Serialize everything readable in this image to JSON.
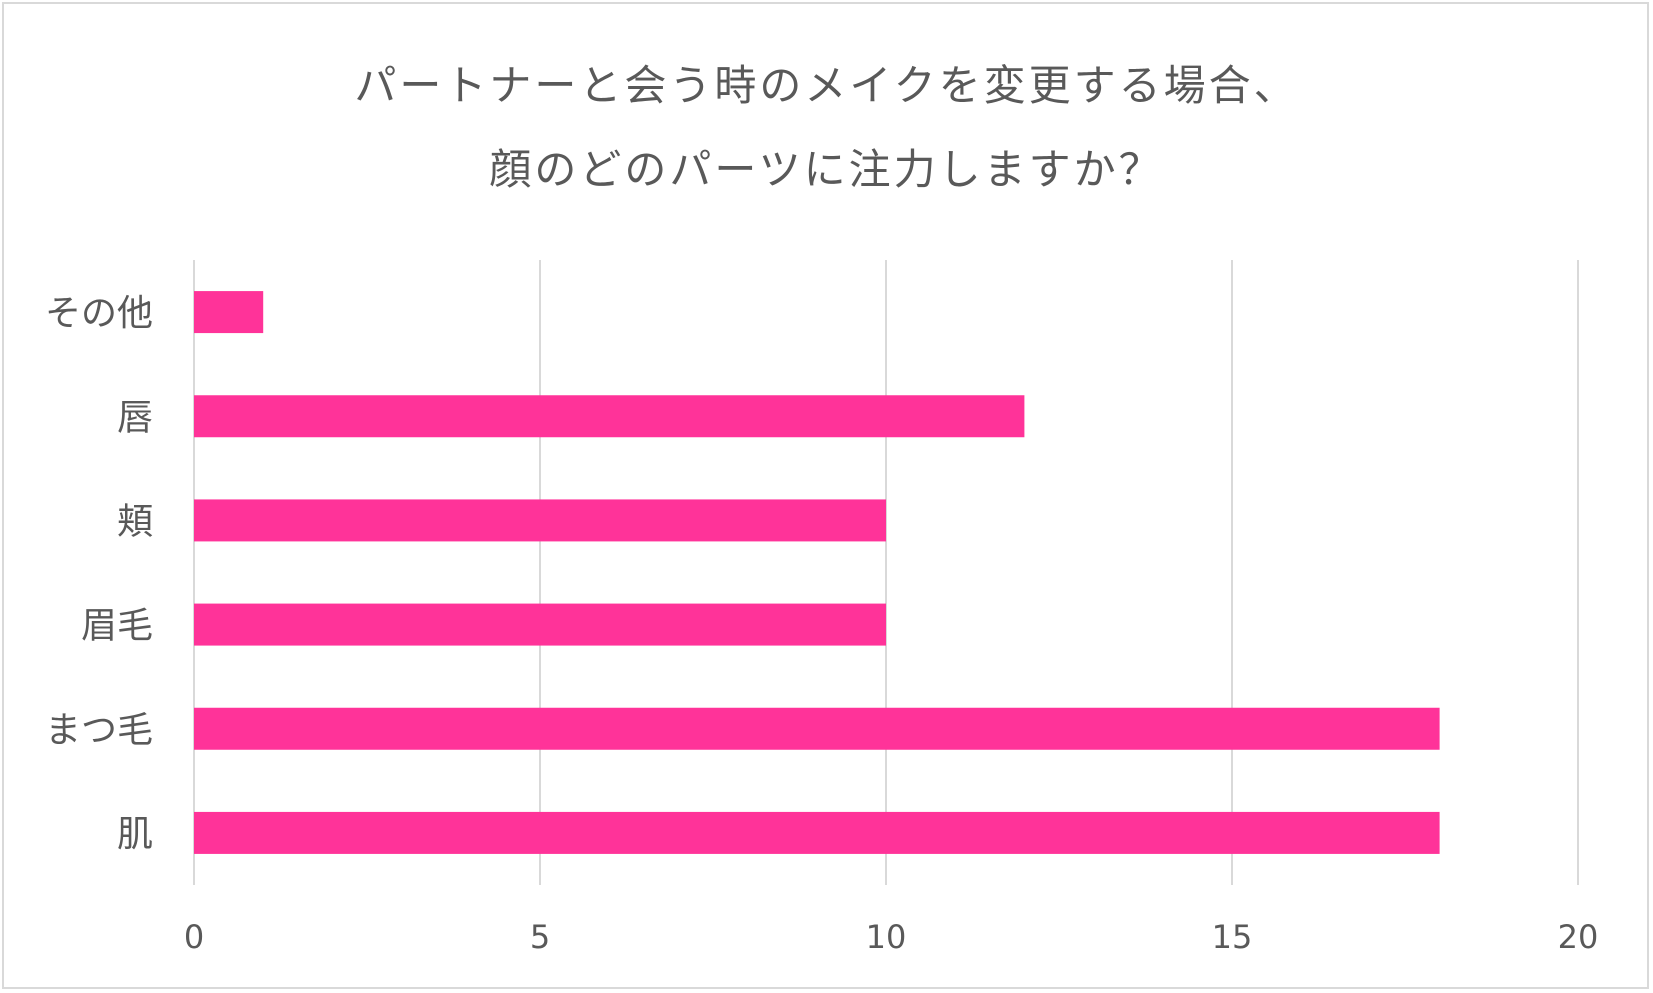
{
  "chart_data": {
    "type": "bar",
    "orientation": "horizontal",
    "title_lines": [
      "パートナーと会う時のメイクを変更する場合、",
      "顔のどのパーツに注力しますか？"
    ],
    "categories": [
      "その他",
      "唇",
      "頬",
      "眉毛",
      "まつ毛",
      "肌"
    ],
    "values": [
      1,
      12,
      10,
      10,
      18,
      18
    ],
    "xlim": [
      0,
      20
    ],
    "x_ticks": [
      0,
      5,
      10,
      15,
      20
    ],
    "grid": true,
    "bar_color": "#ff3399",
    "grid_color": "#d9d9d9",
    "text_color": "#595959",
    "legend": "none"
  }
}
